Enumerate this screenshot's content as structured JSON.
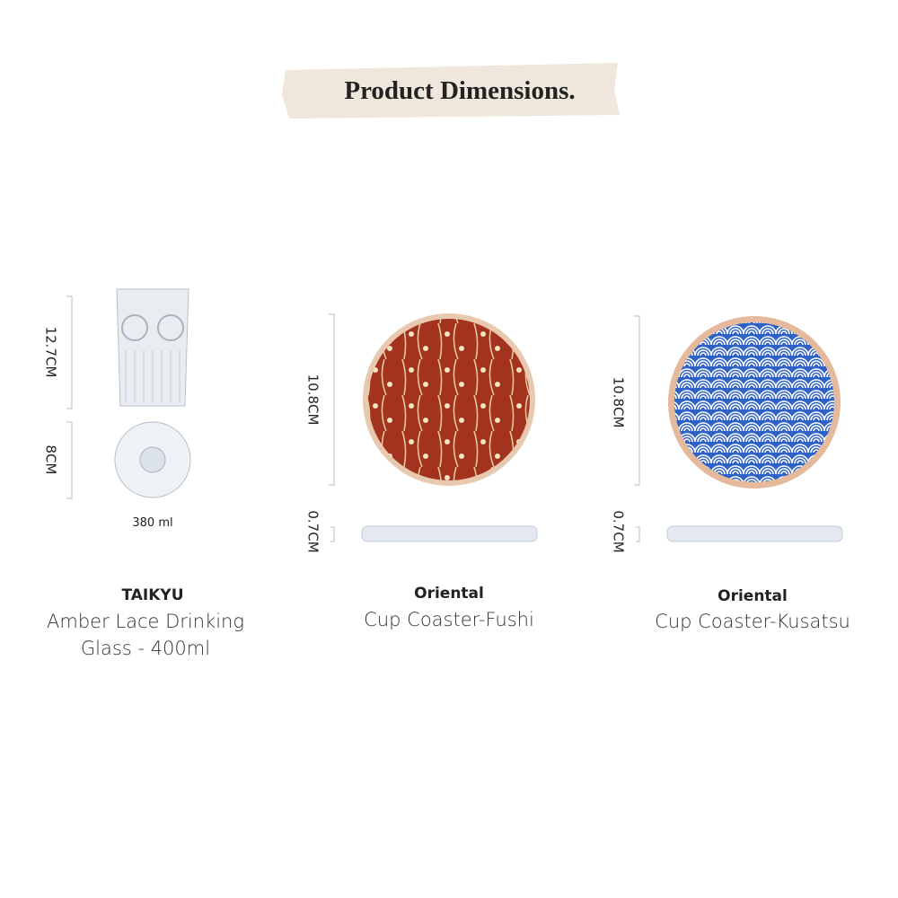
{
  "header": {
    "title": "Product Dimensions."
  },
  "products": [
    {
      "dimensions": [
        "12.7CM",
        "8CM"
      ],
      "volume": "380 ml",
      "brand": "TAIKYU",
      "name_lines": [
        "Amber Lace Drinking",
        "Glass - 400ml"
      ]
    },
    {
      "dimensions": [
        "10.8CM",
        "0.7CM"
      ],
      "brand": "Oriental",
      "name_lines": [
        "Cup Coaster-Fushi"
      ]
    },
    {
      "dimensions": [
        "10.8CM",
        "0.7CM"
      ],
      "brand": "Oriental",
      "name_lines": [
        "Cup Coaster-Kusatsu"
      ]
    }
  ]
}
